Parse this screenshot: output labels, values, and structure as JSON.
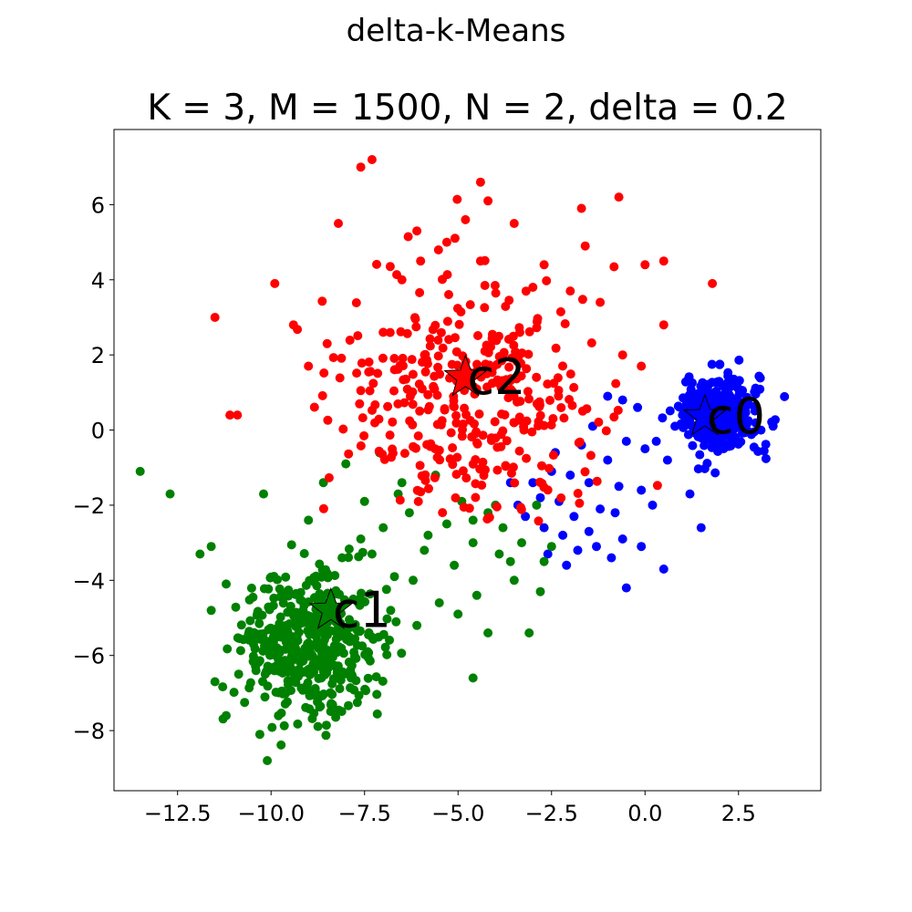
{
  "figure": {
    "title": "delta-k-Means"
  },
  "chart_data": {
    "type": "scatter",
    "title": "K = 3, M = 1500, N = 2, delta = 0.2",
    "xlabel": "",
    "ylabel": "",
    "xlim": [
      -14.2,
      4.7
    ],
    "ylim": [
      -9.6,
      8.0
    ],
    "grid": false,
    "legend": "none",
    "x_ticks": [
      -12.5,
      -10.0,
      -7.5,
      -5.0,
      -2.5,
      0.0,
      2.5
    ],
    "x_tick_labels": [
      "−12.5",
      "−10.0",
      "−7.5",
      "−5.0",
      "−2.5",
      "0.0",
      "2.5"
    ],
    "y_ticks": [
      -8,
      -6,
      -4,
      -2,
      0,
      2,
      4,
      6
    ],
    "y_tick_labels": [
      "−8",
      "−6",
      "−4",
      "−2",
      "0",
      "2",
      "4",
      "6"
    ],
    "clusters": [
      {
        "color": "#0000ff",
        "centroid_label": "c0",
        "centroid": [
          1.6,
          0.35
        ],
        "distribution": {
          "core_center": [
            2.0,
            0.4
          ],
          "core_spread": [
            0.5,
            0.5
          ],
          "core_count": 340,
          "tail_count": 60
        },
        "points": [
          [
            -1.0,
            0.9
          ],
          [
            -0.6,
            0.8
          ],
          [
            -0.2,
            0.6
          ],
          [
            -1.4,
            0.1
          ],
          [
            -0.5,
            -0.3
          ],
          [
            -1.0,
            -0.8
          ],
          [
            -1.7,
            -0.4
          ],
          [
            -2.4,
            -0.6
          ],
          [
            -2.5,
            -1.1
          ],
          [
            -2.0,
            -1.2
          ],
          [
            -1.5,
            -1.4
          ],
          [
            -0.7,
            -1.5
          ],
          [
            0.0,
            -0.5
          ],
          [
            -0.1,
            -1.6
          ],
          [
            0.2,
            -2.0
          ],
          [
            -0.8,
            -2.2
          ],
          [
            -1.2,
            -2.1
          ],
          [
            -1.9,
            -2.3
          ],
          [
            -2.3,
            -1.9
          ],
          [
            -2.8,
            -1.8
          ],
          [
            -3.0,
            -1.4
          ],
          [
            -3.6,
            -1.4
          ],
          [
            -3.2,
            -2.3
          ],
          [
            -2.7,
            -2.6
          ],
          [
            -2.2,
            -2.8
          ],
          [
            -1.5,
            -2.7
          ],
          [
            -1.3,
            -3.1
          ],
          [
            -0.6,
            -2.9
          ],
          [
            -0.1,
            -3.1
          ],
          [
            -0.9,
            -3.4
          ],
          [
            -2.6,
            -3.3
          ],
          [
            -2.1,
            -3.6
          ],
          [
            -3.4,
            -2.0
          ],
          [
            -1.8,
            -3.2
          ],
          [
            0.5,
            -3.7
          ],
          [
            -0.5,
            -4.2
          ],
          [
            1.2,
            -1.7
          ],
          [
            1.5,
            -2.6
          ],
          [
            0.3,
            -0.3
          ],
          [
            0.6,
            -0.8
          ],
          [
            1.0,
            0.4
          ],
          [
            0.8,
            0.1
          ]
        ]
      },
      {
        "color": "#008000",
        "centroid_label": "c1",
        "centroid": [
          -8.4,
          -4.8
        ],
        "distribution": {
          "core_center": [
            -9.0,
            -5.7
          ],
          "core_spread": [
            0.95,
            0.95
          ],
          "core_count": 440,
          "tail_count": 60
        },
        "points": [
          [
            -13.5,
            -1.1
          ],
          [
            -12.7,
            -1.7
          ],
          [
            -10.2,
            -1.7
          ],
          [
            -11.9,
            -3.3
          ],
          [
            -11.6,
            -3.1
          ],
          [
            -9.0,
            -2.4
          ],
          [
            -8.6,
            -1.4
          ],
          [
            -8.0,
            -0.9
          ],
          [
            -7.1,
            -0.6
          ],
          [
            -6.5,
            -1.4
          ],
          [
            -5.6,
            -1.2
          ],
          [
            -4.9,
            -1.9
          ],
          [
            -4.2,
            -2.2
          ],
          [
            -3.8,
            -2.6
          ],
          [
            -3.3,
            -3.0
          ],
          [
            -2.7,
            -3.5
          ],
          [
            -2.5,
            -3.1
          ],
          [
            -3.6,
            -3.5
          ],
          [
            -4.6,
            -3.0
          ],
          [
            -5.3,
            -2.5
          ],
          [
            -6.3,
            -2.2
          ],
          [
            -7.0,
            -2.6
          ],
          [
            -7.6,
            -2.9
          ],
          [
            -8.1,
            -3.4
          ],
          [
            -7.3,
            -3.3
          ],
          [
            -6.7,
            -3.9
          ],
          [
            -5.9,
            -3.2
          ],
          [
            -5.1,
            -3.6
          ],
          [
            -4.5,
            -4.4
          ],
          [
            -3.5,
            -4.0
          ],
          [
            -2.8,
            -4.3
          ],
          [
            -3.1,
            -5.4
          ],
          [
            -4.2,
            -5.4
          ],
          [
            -4.6,
            -6.6
          ],
          [
            -5.0,
            -4.9
          ],
          [
            -5.5,
            -4.6
          ],
          [
            -6.1,
            -5.2
          ],
          [
            -6.8,
            -4.8
          ],
          [
            -6.2,
            -4.0
          ],
          [
            -7.8,
            -4.5
          ],
          [
            -4.0,
            -2.0
          ],
          [
            -4.6,
            -2.4
          ],
          [
            -5.8,
            -2.8
          ],
          [
            -6.6,
            -1.7
          ],
          [
            -7.5,
            -1.9
          ],
          [
            -3.9,
            -3.3
          ],
          [
            -2.9,
            -2.0
          ],
          [
            -8.8,
            -7.0
          ],
          [
            -10.1,
            -8.8
          ],
          [
            -10.3,
            -8.1
          ],
          [
            -11.2,
            -7.6
          ],
          [
            -11.5,
            -6.7
          ],
          [
            -11.6,
            -4.8
          ],
          [
            -11.2,
            -4.1
          ]
        ]
      },
      {
        "color": "#ff0000",
        "centroid_label": "c2",
        "centroid": [
          -4.8,
          1.4
        ],
        "distribution": {
          "core_center": [
            -4.6,
            0.9
          ],
          "core_spread": [
            1.7,
            1.6
          ],
          "core_count": 350,
          "tail_count": 50
        },
        "points": [
          [
            -7.6,
            7.0
          ],
          [
            -7.3,
            7.2
          ],
          [
            -4.2,
            6.1
          ],
          [
            -0.7,
            6.2
          ],
          [
            -1.7,
            5.9
          ],
          [
            -3.5,
            5.5
          ],
          [
            -4.8,
            5.6
          ],
          [
            -5.3,
            5.0
          ],
          [
            -8.2,
            5.5
          ],
          [
            -1.6,
            4.9
          ],
          [
            -2.7,
            4.4
          ],
          [
            0.0,
            4.4
          ],
          [
            0.5,
            4.5
          ],
          [
            -9.9,
            3.9
          ],
          [
            1.8,
            3.9
          ],
          [
            -11.5,
            3.0
          ],
          [
            -9.4,
            2.8
          ],
          [
            0.5,
            2.8
          ],
          [
            -11.1,
            0.4
          ],
          [
            -10.9,
            0.4
          ],
          [
            -1.2,
            3.4
          ],
          [
            -0.6,
            2.0
          ],
          [
            -0.1,
            1.7
          ],
          [
            -9.0,
            1.7
          ],
          [
            -8.5,
            2.3
          ],
          [
            -6.0,
            4.5
          ],
          [
            -6.5,
            4.0
          ],
          [
            -4.4,
            4.5
          ],
          [
            -3.0,
            3.8
          ],
          [
            -2.0,
            3.7
          ],
          [
            -4.4,
            6.6
          ],
          [
            -6.1,
            5.3
          ],
          [
            -7.0,
            2.6
          ]
        ]
      }
    ]
  }
}
